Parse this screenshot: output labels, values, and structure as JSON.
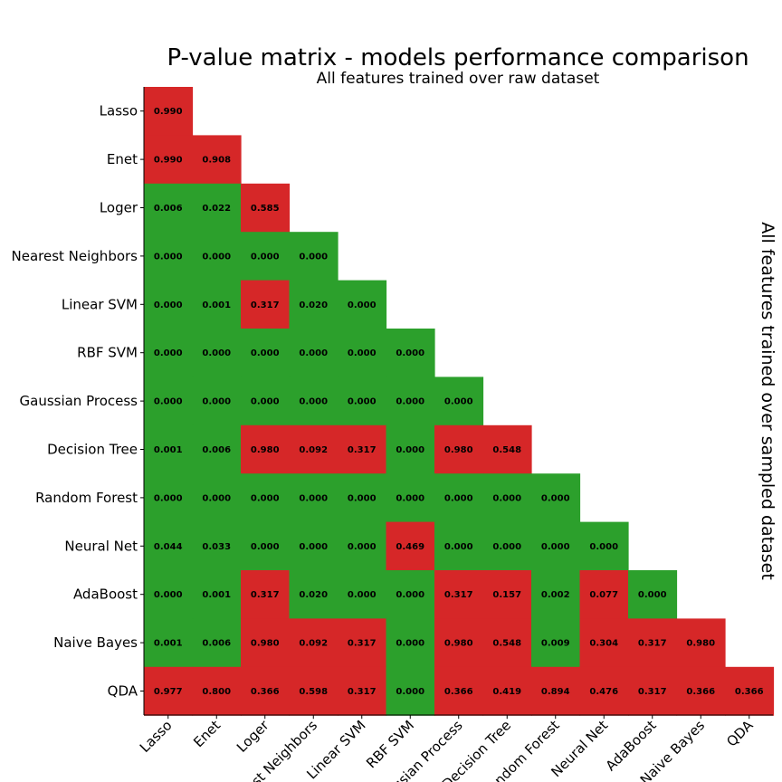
{
  "chart_data": {
    "type": "heatmap",
    "title": "P-value matrix - models performance comparison",
    "subtitle": "All features trained over raw dataset",
    "right_label": "All features trained over sampled dataset",
    "x_tick_labels": [
      "Lasso",
      "Enet",
      "Loger",
      "Nearest Neighbors",
      "Linear SVM",
      "RBF SVM",
      "Gaussian Process",
      "Decision Tree",
      "Random Forest",
      "Neural Net",
      "AdaBoost",
      "Naive Bayes",
      "QDA"
    ],
    "y_tick_labels": [
      "Lasso",
      "Enet",
      "Loger",
      "Nearest Neighbors",
      "Linear SVM",
      "RBF SVM",
      "Gaussian Process",
      "Decision Tree",
      "Random Forest",
      "Neural Net",
      "AdaBoost",
      "Naive Bayes",
      "QDA"
    ],
    "colors": {
      "significant": "#2ca02c",
      "not_significant": "#d62728"
    },
    "threshold": 0.05,
    "values": [
      [
        "0.990"
      ],
      [
        "0.990",
        "0.908"
      ],
      [
        "0.006",
        "0.022",
        "0.585"
      ],
      [
        "0.000",
        "0.000",
        "0.000",
        "0.000"
      ],
      [
        "0.000",
        "0.001",
        "0.317",
        "0.020",
        "0.000"
      ],
      [
        "0.000",
        "0.000",
        "0.000",
        "0.000",
        "0.000",
        "0.000"
      ],
      [
        "0.000",
        "0.000",
        "0.000",
        "0.000",
        "0.000",
        "0.000",
        "0.000"
      ],
      [
        "0.001",
        "0.006",
        "0.980",
        "0.092",
        "0.317",
        "0.000",
        "0.980",
        "0.548"
      ],
      [
        "0.000",
        "0.000",
        "0.000",
        "0.000",
        "0.000",
        "0.000",
        "0.000",
        "0.000",
        "0.000"
      ],
      [
        "0.044",
        "0.033",
        "0.000",
        "0.000",
        "0.000",
        "0.469",
        "0.000",
        "0.000",
        "0.000",
        "0.000"
      ],
      [
        "0.000",
        "0.001",
        "0.317",
        "0.020",
        "0.000",
        "0.000",
        "0.317",
        "0.157",
        "0.002",
        "0.077",
        "0.000"
      ],
      [
        "0.001",
        "0.006",
        "0.980",
        "0.092",
        "0.317",
        "0.000",
        "0.980",
        "0.548",
        "0.009",
        "0.304",
        "0.317",
        "0.980"
      ],
      [
        "0.977",
        "0.800",
        "0.366",
        "0.598",
        "0.317",
        "0.000",
        "0.366",
        "0.419",
        "0.894",
        "0.476",
        "0.317",
        "0.366",
        "0.366"
      ]
    ]
  }
}
